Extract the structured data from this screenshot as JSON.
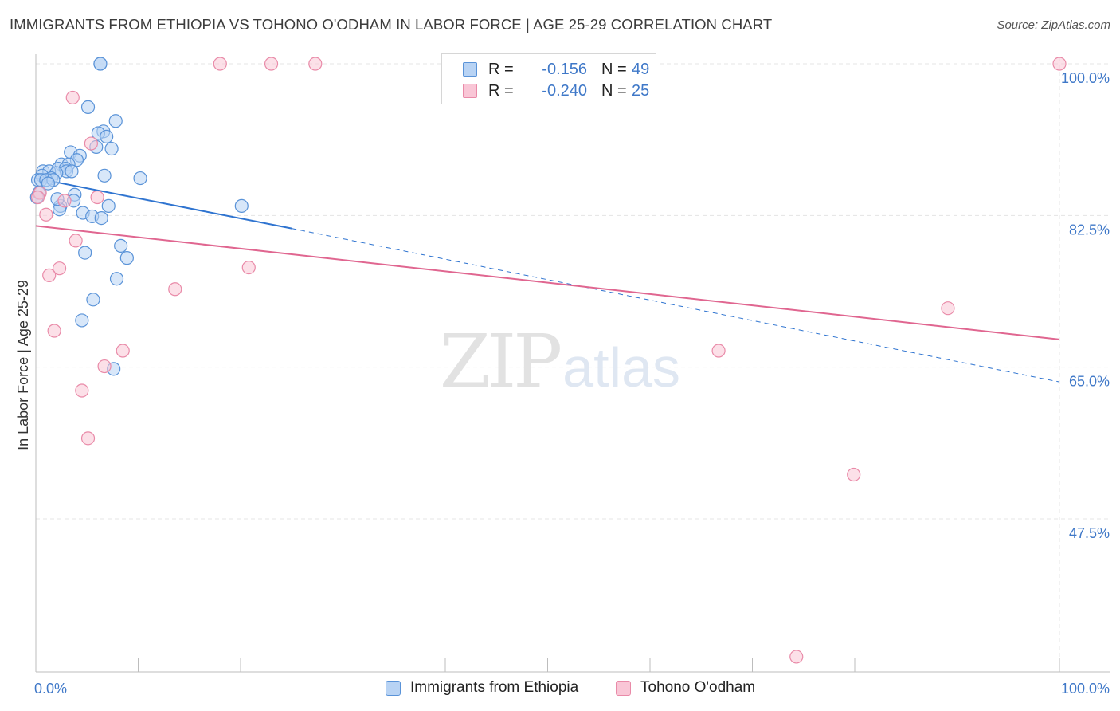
{
  "header": {
    "title": "IMMIGRANTS FROM ETHIOPIA VS TOHONO O'ODHAM IN LABOR FORCE | AGE 25-29 CORRELATION CHART",
    "source": "Source: ZipAtlas.com"
  },
  "watermark": {
    "zip": "ZIP",
    "atlas": "atlas"
  },
  "legend": {
    "r_label": "R =",
    "n_label": "N =",
    "series": [
      {
        "name": "Immigrants from Ethiopia",
        "r": "-0.156",
        "n": "49"
      },
      {
        "name": "Tohono O'odham",
        "r": "-0.240",
        "n": "25"
      }
    ]
  },
  "colors": {
    "blue_fill": "#b8d3f4",
    "blue_stroke": "#5a93d8",
    "blue_line": "#2f74d0",
    "pink_fill": "#f9c6d6",
    "pink_stroke": "#e98aa8",
    "pink_line": "#e06690",
    "grid": "#e4e4e4",
    "axis_text": "#3f78c8"
  },
  "chart_data": {
    "type": "scatter",
    "title": "IMMIGRANTS FROM ETHIOPIA VS TOHONO O'ODHAM IN LABOR FORCE | AGE 25-29 CORRELATION CHART",
    "xlabel": "",
    "ylabel": "In Labor Force | Age 25-29",
    "xlim": [
      0,
      105
    ],
    "ylim": [
      30,
      102
    ],
    "x_tick_labels": [
      "0.0%",
      "100.0%"
    ],
    "y_ticks": [
      {
        "value": 100.0,
        "label": "100.0%"
      },
      {
        "value": 82.5,
        "label": "82.5%"
      },
      {
        "value": 65.0,
        "label": "65.0%"
      },
      {
        "value": 47.5,
        "label": "47.5%"
      }
    ],
    "series": [
      {
        "name": "Immigrants from Ethiopia",
        "points": [
          [
            6.3,
            100.0
          ],
          [
            6.3,
            100.0
          ],
          [
            5.1,
            95.0
          ],
          [
            7.8,
            93.4
          ],
          [
            6.6,
            92.2
          ],
          [
            6.1,
            92.0
          ],
          [
            6.9,
            91.6
          ],
          [
            5.9,
            90.4
          ],
          [
            7.4,
            90.2
          ],
          [
            3.4,
            89.8
          ],
          [
            4.3,
            89.4
          ],
          [
            4.0,
            88.9
          ],
          [
            2.5,
            88.4
          ],
          [
            3.2,
            88.4
          ],
          [
            2.2,
            87.9
          ],
          [
            2.9,
            87.9
          ],
          [
            0.7,
            87.6
          ],
          [
            1.3,
            87.6
          ],
          [
            3.0,
            87.6
          ],
          [
            3.5,
            87.6
          ],
          [
            2.0,
            87.4
          ],
          [
            0.6,
            87.1
          ],
          [
            6.7,
            87.1
          ],
          [
            1.5,
            86.8
          ],
          [
            10.2,
            86.8
          ],
          [
            0.2,
            86.6
          ],
          [
            0.5,
            86.6
          ],
          [
            1.0,
            86.6
          ],
          [
            1.7,
            86.6
          ],
          [
            1.2,
            86.2
          ],
          [
            0.3,
            85.1
          ],
          [
            3.8,
            84.9
          ],
          [
            0.1,
            84.6
          ],
          [
            3.7,
            84.2
          ],
          [
            2.4,
            83.6
          ],
          [
            7.1,
            83.6
          ],
          [
            20.1,
            83.6
          ],
          [
            2.3,
            83.2
          ],
          [
            4.6,
            82.8
          ],
          [
            5.5,
            82.4
          ],
          [
            6.4,
            82.2
          ],
          [
            8.3,
            79.0
          ],
          [
            4.8,
            78.2
          ],
          [
            8.9,
            77.6
          ],
          [
            7.9,
            75.2
          ],
          [
            5.6,
            72.8
          ],
          [
            4.5,
            70.4
          ],
          [
            7.6,
            64.8
          ],
          [
            2.1,
            84.4
          ]
        ]
      },
      {
        "name": "Tohono O'odham",
        "points": [
          [
            18.0,
            100.0
          ],
          [
            23.0,
            100.0
          ],
          [
            27.3,
            100.0
          ],
          [
            100.0,
            100.0
          ],
          [
            3.6,
            96.1
          ],
          [
            5.4,
            90.8
          ],
          [
            1.0,
            82.6
          ],
          [
            2.8,
            84.2
          ],
          [
            6.0,
            84.6
          ],
          [
            3.9,
            79.6
          ],
          [
            2.3,
            76.4
          ],
          [
            1.3,
            75.6
          ],
          [
            20.8,
            76.5
          ],
          [
            13.6,
            74.0
          ],
          [
            89.1,
            71.8
          ],
          [
            1.8,
            69.2
          ],
          [
            8.5,
            66.9
          ],
          [
            66.7,
            66.9
          ],
          [
            6.7,
            65.1
          ],
          [
            4.5,
            62.3
          ],
          [
            5.1,
            56.8
          ],
          [
            79.9,
            52.6
          ],
          [
            74.3,
            31.6
          ],
          [
            0.4,
            85.1
          ],
          [
            0.2,
            84.6
          ]
        ]
      }
    ],
    "trend_lines": [
      {
        "series": "Immigrants from Ethiopia",
        "x_solid": [
          0,
          25
        ],
        "y_solid": [
          86.8,
          81.0
        ],
        "x_dash": [
          25,
          100
        ],
        "y_dash": [
          81.0,
          63.3
        ]
      },
      {
        "series": "Tohono O'odham",
        "x": [
          0,
          100
        ],
        "y": [
          81.3,
          68.2
        ]
      }
    ]
  }
}
